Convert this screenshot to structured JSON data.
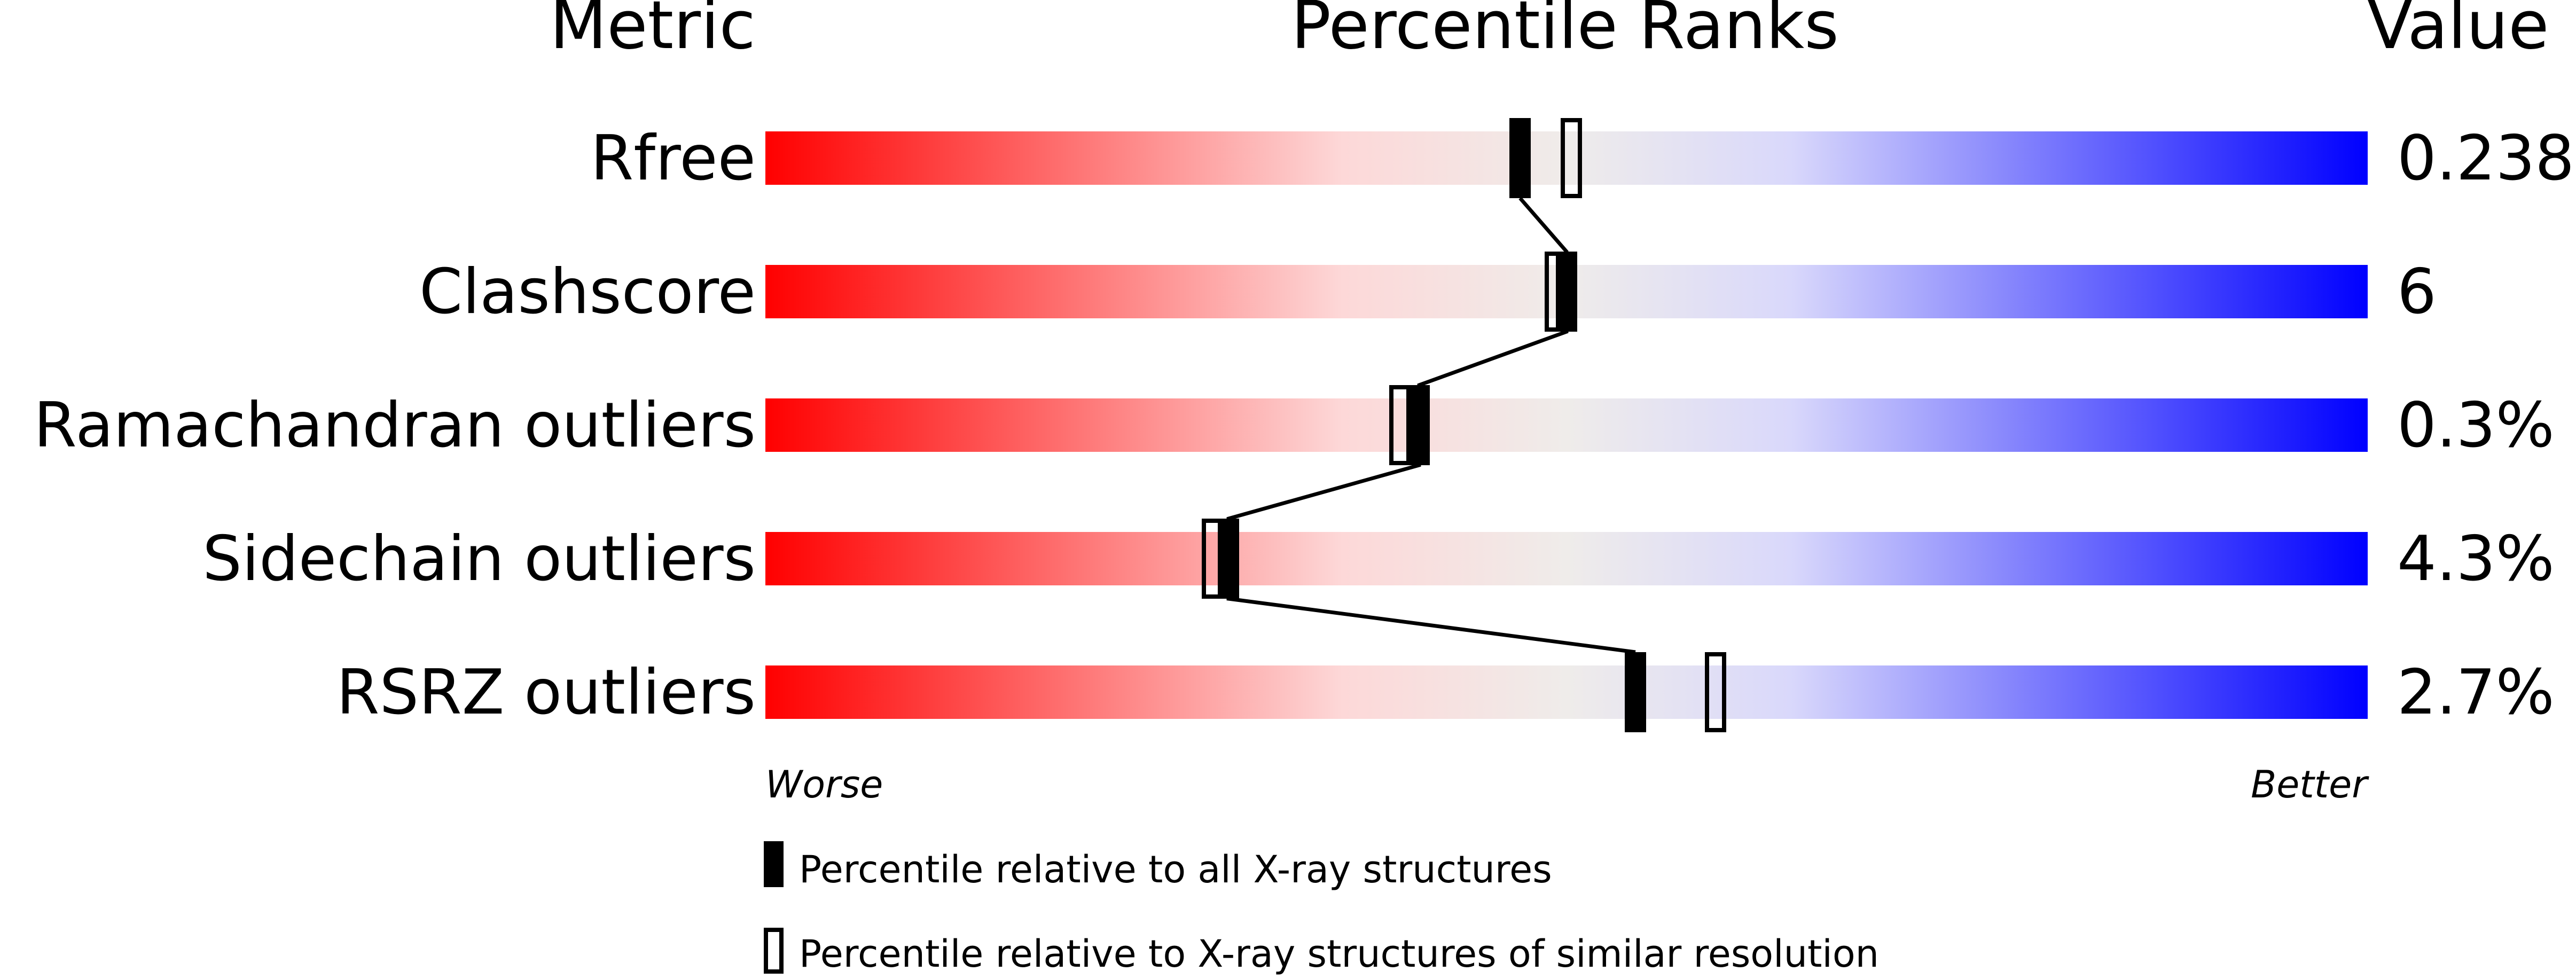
{
  "chart_data": {
    "type": "percentile-slider",
    "headers": {
      "metric": "Metric",
      "ranks": "Percentile Ranks",
      "value": "Value"
    },
    "xlim": [
      0,
      100
    ],
    "axis_labels": {
      "left": "Worse",
      "right": "Better"
    },
    "rows": [
      {
        "metric": "Rfree",
        "value": "0.238",
        "percentile_all": 47.1,
        "percentile_similar": 50.3
      },
      {
        "metric": "Clashscore",
        "value": "6",
        "percentile_all": 50.0,
        "percentile_similar": 49.3
      },
      {
        "metric": "Ramachandran outliers",
        "value": "0.3%",
        "percentile_all": 40.8,
        "percentile_similar": 39.6
      },
      {
        "metric": "Sidechain outliers",
        "value": "4.3%",
        "percentile_all": 28.9,
        "percentile_similar": 27.9
      },
      {
        "metric": "RSRZ outliers",
        "value": "2.7%",
        "percentile_all": 54.3,
        "percentile_similar": 59.3
      }
    ],
    "legend": [
      {
        "marker": "filled",
        "label": "Percentile relative to all X-ray structures"
      },
      {
        "marker": "open",
        "label": "Percentile relative to X-ray structures of similar resolution"
      }
    ],
    "gradient_colors": [
      "#ff0000",
      "#fdd8d8",
      "#efecea",
      "#d9d8fb",
      "#0000ff"
    ]
  }
}
